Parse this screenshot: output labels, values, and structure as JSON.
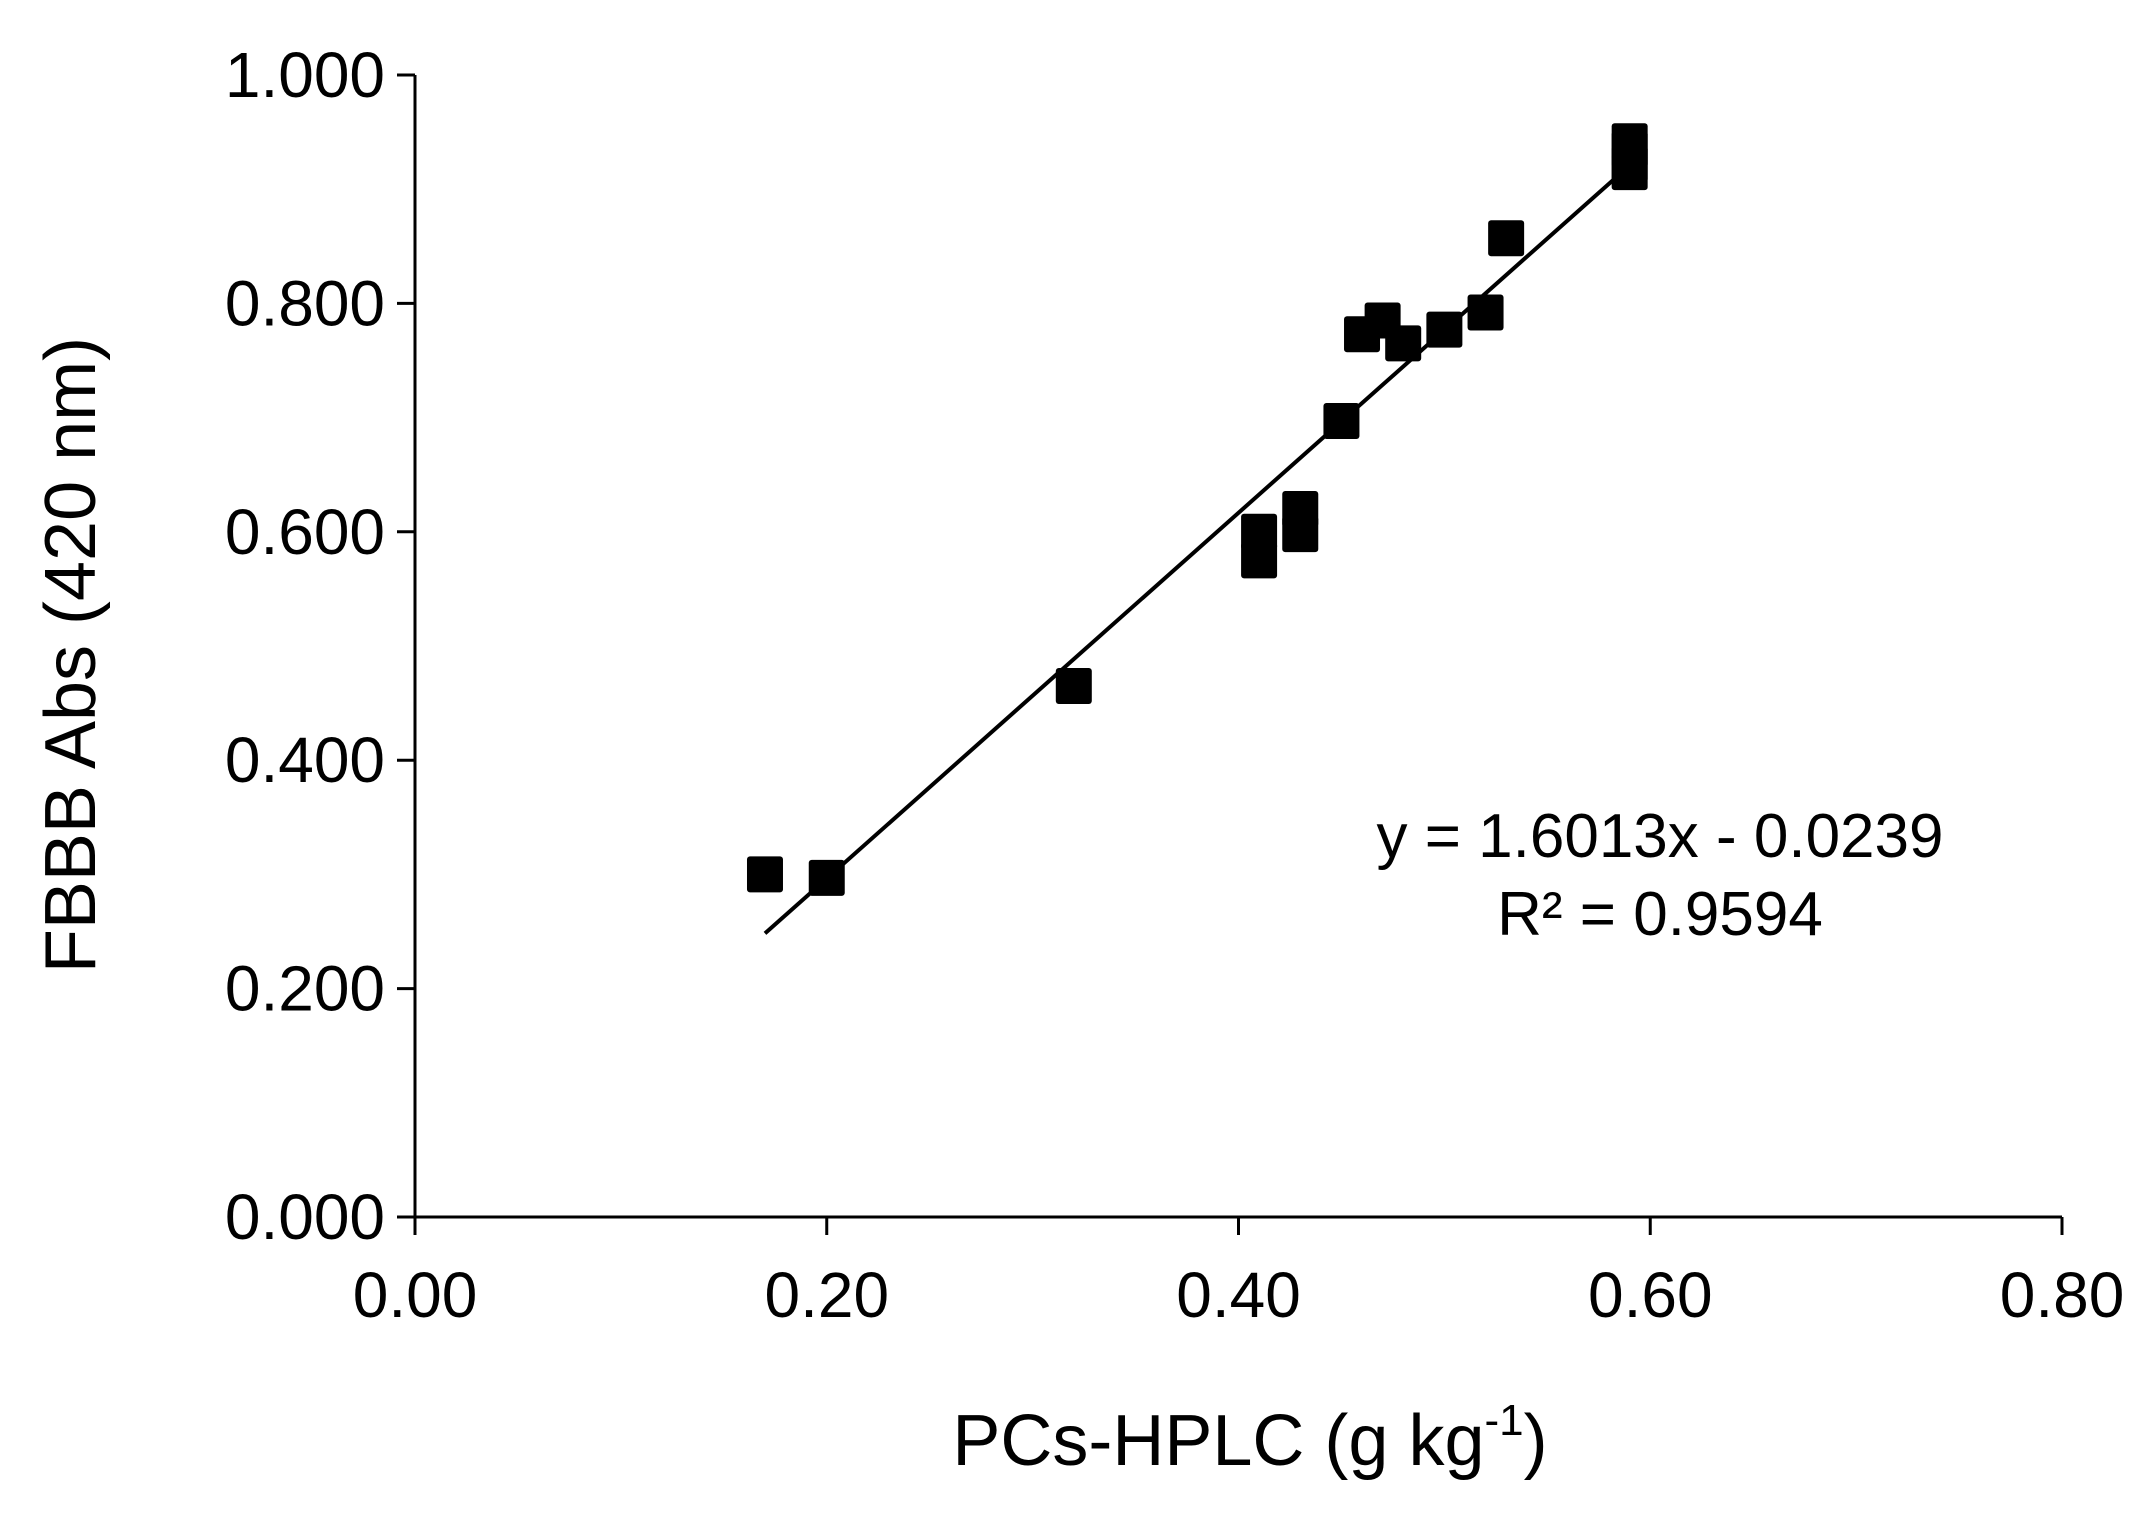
{
  "chart_data": {
    "type": "scatter",
    "xlabel": "PCs-HPLC  (g kg",
    "xlabel_sup": "-1",
    "xlabel_end": ")",
    "ylabel": "FBBB Abs  (420 nm)",
    "xlim": [
      0,
      0.8
    ],
    "ylim": [
      0,
      1.0
    ],
    "x_ticks": [
      "0.00",
      "0.20",
      "0.40",
      "0.60",
      "0.80"
    ],
    "y_ticks": [
      "0.000",
      "0.200",
      "0.400",
      "0.600",
      "0.800",
      "1.000"
    ],
    "grid": false,
    "legend": false,
    "marker": "square",
    "marker_color": "#000000",
    "series": [
      {
        "points": [
          [
            0.17,
            0.3
          ],
          [
            0.2,
            0.297
          ],
          [
            0.32,
            0.465
          ],
          [
            0.41,
            0.575
          ],
          [
            0.41,
            0.6
          ],
          [
            0.43,
            0.598
          ],
          [
            0.43,
            0.62
          ],
          [
            0.45,
            0.697
          ],
          [
            0.46,
            0.773
          ],
          [
            0.47,
            0.785
          ],
          [
            0.48,
            0.765
          ],
          [
            0.5,
            0.777
          ],
          [
            0.52,
            0.792
          ],
          [
            0.53,
            0.857
          ],
          [
            0.59,
            0.915
          ],
          [
            0.59,
            0.922
          ],
          [
            0.59,
            0.935
          ],
          [
            0.59,
            0.942
          ]
        ]
      }
    ],
    "trendline": {
      "slope": 1.6013,
      "intercept": -0.0239,
      "x_range": [
        0.17,
        0.59
      ],
      "color": "#000000"
    },
    "annotation": {
      "equation": "y = 1.6013x - 0.0239",
      "r2_prefix": "R² = 0.9594"
    }
  }
}
